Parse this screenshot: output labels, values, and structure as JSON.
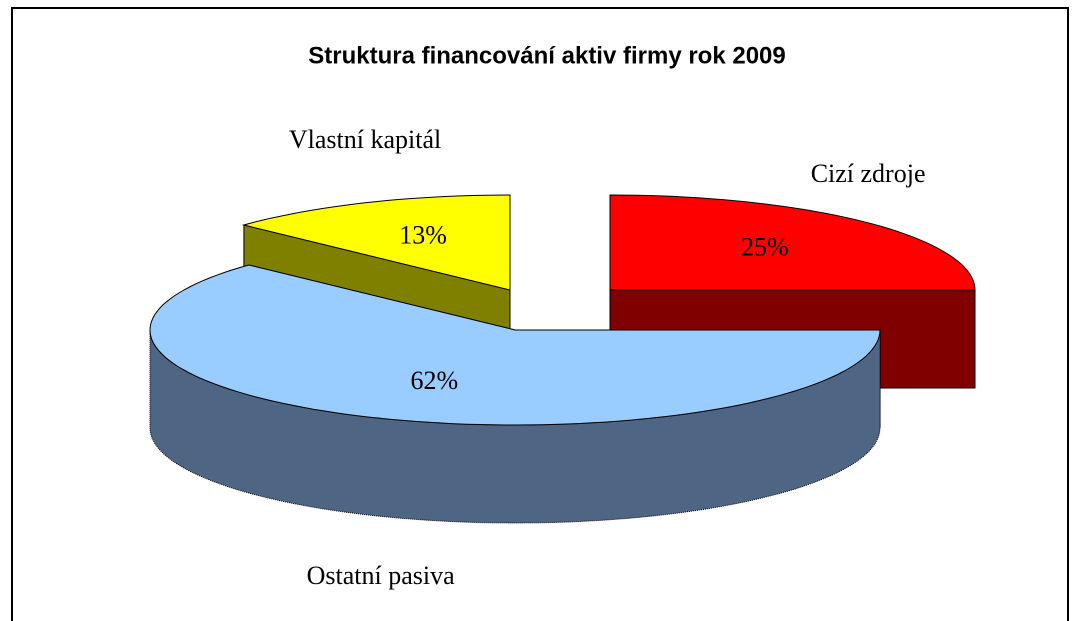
{
  "chart_data": {
    "type": "pie3d",
    "title": "Struktura financování aktiv firmy rok 2009",
    "categories": [
      "Cizí zdroje",
      "Ostatní pasiva",
      "Vlastní kapitál"
    ],
    "values": [
      25,
      62,
      13
    ],
    "value_labels": [
      "25%",
      "62%",
      "13%"
    ],
    "colors": [
      "#ff0000",
      "#99ccff",
      "#ffff00"
    ],
    "side_colors": [
      "#800000",
      "#4f6584",
      "#808000"
    ]
  }
}
